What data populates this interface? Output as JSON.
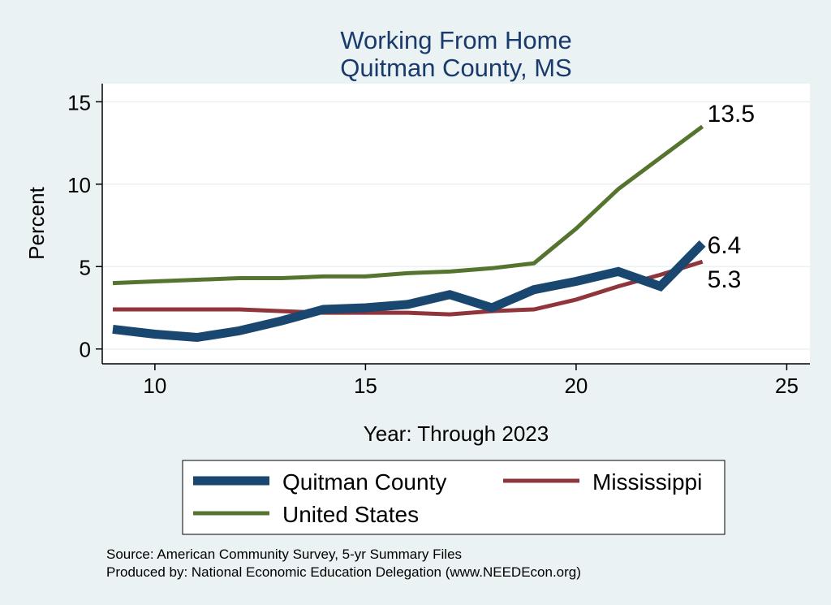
{
  "chart_data": {
    "type": "line",
    "title": [
      "Working From Home",
      "Quitman County, MS"
    ],
    "xlabel": "Year: Through 2023",
    "ylabel": "Percent",
    "xlim": [
      9,
      25
    ],
    "ylim": [
      0,
      15
    ],
    "x_ticks": [
      10,
      15,
      20,
      25
    ],
    "y_ticks": [
      0,
      5,
      10,
      15
    ],
    "grid": true,
    "legend_position": "bottom",
    "series": [
      {
        "name": "Quitman County",
        "color": "#1a476f",
        "x": [
          9,
          10,
          11,
          12,
          13,
          14,
          15,
          16,
          17,
          18,
          19,
          20,
          21,
          22,
          23
        ],
        "y": [
          1.2,
          0.9,
          0.7,
          1.1,
          1.7,
          2.4,
          2.5,
          2.7,
          3.3,
          2.5,
          3.6,
          4.1,
          4.7,
          3.8,
          6.4
        ],
        "end_label": "6.4"
      },
      {
        "name": "Mississippi",
        "color": "#90353b",
        "x": [
          9,
          10,
          11,
          12,
          13,
          14,
          15,
          16,
          17,
          18,
          19,
          20,
          21,
          22,
          23
        ],
        "y": [
          2.4,
          2.4,
          2.4,
          2.4,
          2.3,
          2.2,
          2.2,
          2.2,
          2.1,
          2.3,
          2.4,
          3.0,
          3.8,
          4.5,
          5.3
        ],
        "end_label": "5.3"
      },
      {
        "name": "United States",
        "color": "#55752f",
        "x": [
          9,
          10,
          11,
          12,
          13,
          14,
          15,
          16,
          17,
          18,
          19,
          20,
          21,
          22,
          23
        ],
        "y": [
          4.0,
          4.1,
          4.2,
          4.3,
          4.3,
          4.4,
          4.4,
          4.6,
          4.7,
          4.9,
          5.2,
          7.3,
          9.7,
          11.6,
          13.5
        ],
        "end_label": "13.5"
      }
    ],
    "notes": [
      "Source: American Community Survey, 5-yr Summary Files",
      "Produced by: National Economic Education Delegation (www.NEEDEcon.org)"
    ]
  }
}
